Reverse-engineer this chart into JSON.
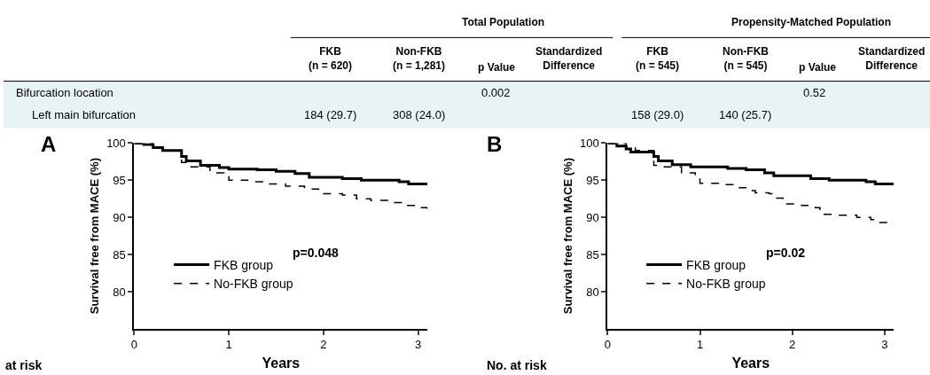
{
  "chart_data": [
    {
      "type": "other",
      "annotations": [
        "Total Population",
        "Propensity-Matched Population",
        "FKB\n(n = 620)",
        "Non-FKB\n(n = 1,281)",
        "p Value",
        "Standardized\nDifference",
        "FKB\n(n = 545)",
        "Non-FKB\n(n = 545)",
        "p Value",
        "Standardized\nDifference",
        "Bifurcation location",
        "0.002",
        "0.52",
        "Left main bifurcation",
        "184 (29.7)",
        "308 (24.0)",
        "158 (29.0)",
        "140 (25.7)"
      ]
    },
    {
      "type": "step",
      "title": "A",
      "xlabel": "Years",
      "ylabel": "Survival free from MACE (%)",
      "xlim": [
        0,
        3.1
      ],
      "ylim": [
        75,
        100
      ],
      "xticks": [
        0,
        1,
        2,
        3
      ],
      "yticks": [
        80,
        85,
        90,
        95,
        100
      ],
      "legend": "left",
      "marker": "none",
      "annotations": [
        "p=0.048",
        "at risk"
      ],
      "series": [
        {
          "name": "FKB group",
          "color": "#000000",
          "line_style": "solid",
          "x": [
            0,
            0.1,
            0.2,
            0.3,
            0.45,
            0.5,
            0.55,
            0.7,
            0.9,
            1.0,
            1.3,
            1.5,
            1.7,
            1.85,
            2.0,
            2.2,
            2.4,
            2.8,
            2.9,
            3.1
          ],
          "values": [
            100,
            99.8,
            99.4,
            99.0,
            99.0,
            98.2,
            97.6,
            97.0,
            96.7,
            96.5,
            96.4,
            96.2,
            95.9,
            95.4,
            95.4,
            95.2,
            95.0,
            94.8,
            94.5,
            94.5
          ]
        },
        {
          "name": "No-FKB group",
          "color": "#000000",
          "line_style": "dashed",
          "x": [
            0,
            0.2,
            0.3,
            0.45,
            0.5,
            0.6,
            0.8,
            0.95,
            1.0,
            1.2,
            1.4,
            1.6,
            1.8,
            1.95,
            2.2,
            2.35,
            2.5,
            2.7,
            2.85,
            3.0,
            3.1
          ],
          "values": [
            100,
            99.4,
            99.0,
            99.0,
            97.4,
            96.8,
            96.0,
            95.6,
            95.0,
            94.8,
            94.5,
            94.2,
            93.8,
            93.2,
            93.0,
            92.5,
            92.3,
            92.0,
            91.6,
            91.3,
            90.9
          ]
        }
      ]
    },
    {
      "type": "step",
      "title": "B",
      "xlabel": "Years",
      "ylabel": "Survival free from MACE (%)",
      "xlim": [
        0,
        3.1
      ],
      "ylim": [
        75,
        100
      ],
      "xticks": [
        0,
        1,
        2,
        3
      ],
      "yticks": [
        80,
        85,
        90,
        95,
        100
      ],
      "legend": "left",
      "marker": "none",
      "annotations": [
        "p=0.02",
        "No. at risk"
      ],
      "series": [
        {
          "name": "FKB group",
          "color": "#000000",
          "line_style": "solid",
          "x": [
            0,
            0.1,
            0.2,
            0.25,
            0.45,
            0.5,
            0.55,
            0.7,
            0.9,
            1.3,
            1.5,
            1.7,
            1.8,
            2.0,
            2.2,
            2.4,
            2.8,
            2.9,
            3.1
          ],
          "values": [
            100,
            99.6,
            99.2,
            98.8,
            98.8,
            98.2,
            97.6,
            97.1,
            96.8,
            96.6,
            96.4,
            96.0,
            95.6,
            95.6,
            95.2,
            95.0,
            94.8,
            94.5,
            94.5
          ]
        },
        {
          "name": "No-FKB group",
          "color": "#000000",
          "line_style": "dashed",
          "x": [
            0,
            0.2,
            0.3,
            0.45,
            0.5,
            0.6,
            0.8,
            0.95,
            1.0,
            1.2,
            1.4,
            1.55,
            1.6,
            1.75,
            1.8,
            1.9,
            2.1,
            2.25,
            2.3,
            2.5,
            2.7,
            2.85,
            2.9,
            3.1
          ],
          "values": [
            100,
            99.4,
            99.0,
            99.0,
            97.0,
            96.8,
            96.0,
            95.6,
            94.6,
            94.4,
            94.0,
            93.6,
            93.3,
            93.2,
            92.6,
            91.8,
            91.6,
            91.3,
            90.4,
            90.3,
            90.0,
            89.7,
            89.3,
            89.3
          ]
        }
      ]
    }
  ]
}
